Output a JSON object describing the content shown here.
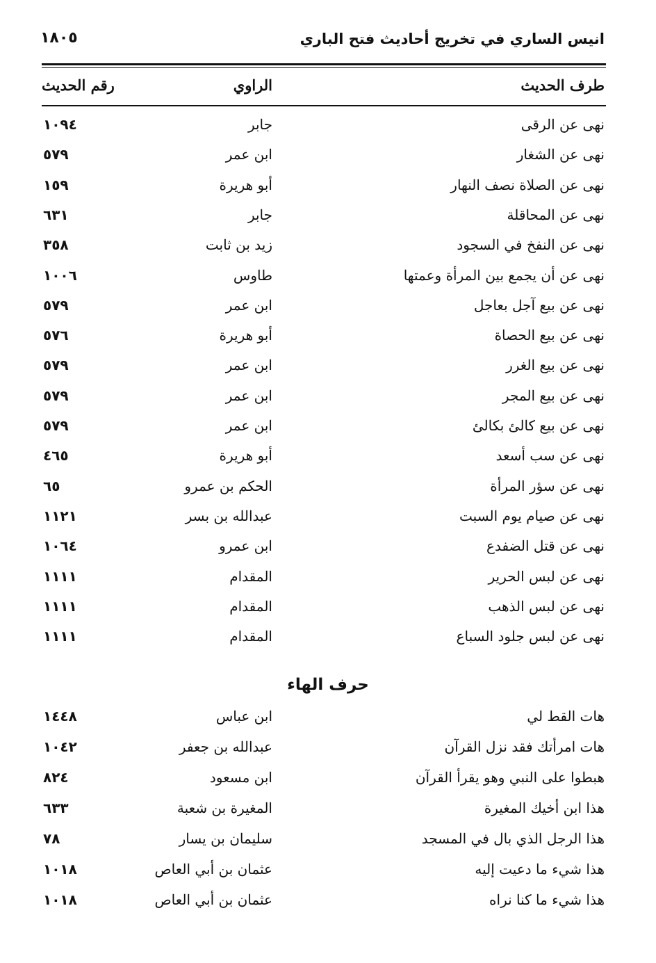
{
  "header": {
    "title": "انيس الساري في تخريج أحاديث فتح الباري",
    "page_number": "١٨٠٥"
  },
  "columns": {
    "hadith": "طرف الحديث",
    "narrator": "الراوي",
    "number": "رقم الحديث"
  },
  "rows_1": [
    {
      "hadith": "نهى عن الرقى",
      "narrator": "جابر",
      "number": "١٠٩٤"
    },
    {
      "hadith": "نهى عن الشغار",
      "narrator": "ابن عمر",
      "number": "٥٧٩"
    },
    {
      "hadith": "نهى عن الصلاة نصف النهار",
      "narrator": "أبو هريرة",
      "number": "١٥٩"
    },
    {
      "hadith": "نهى عن المحاقلة",
      "narrator": "جابر",
      "number": "٦٣١"
    },
    {
      "hadith": "نهى عن النفخ في السجود",
      "narrator": "زيد بن ثابت",
      "number": "٣٥٨"
    },
    {
      "hadith": "نهى عن أن يجمع بين المرأة وعمتها",
      "narrator": "طاوس",
      "number": "١٠٠٦"
    },
    {
      "hadith": "نهى عن بيع آجل بعاجل",
      "narrator": "ابن عمر",
      "number": "٥٧٩"
    },
    {
      "hadith": "نهى عن بيع الحصاة",
      "narrator": "أبو هريرة",
      "number": "٥٧٦"
    },
    {
      "hadith": "نهى عن بيع الغرر",
      "narrator": "ابن عمر",
      "number": "٥٧٩"
    },
    {
      "hadith": "نهى عن بيع المجر",
      "narrator": "ابن عمر",
      "number": "٥٧٩"
    },
    {
      "hadith": "نهى عن بيع كالئ بكالئ",
      "narrator": "ابن عمر",
      "number": "٥٧٩"
    },
    {
      "hadith": "نهى عن سب أسعد",
      "narrator": "أبو هريرة",
      "number": "٤٦٥"
    },
    {
      "hadith": "نهى عن سؤر المرأة",
      "narrator": "الحكم بن عمرو",
      "number": "٦٥"
    },
    {
      "hadith": "نهى عن صيام يوم السبت",
      "narrator": "عبدالله بن بسر",
      "number": "١١٢١"
    },
    {
      "hadith": "نهى عن قتل الضفدع",
      "narrator": "ابن عمرو",
      "number": "١٠٦٤"
    },
    {
      "hadith": "نهى عن لبس الحرير",
      "narrator": "المقدام",
      "number": "١١١١"
    },
    {
      "hadith": "نهى عن لبس الذهب",
      "narrator": "المقدام",
      "number": "١١١١"
    },
    {
      "hadith": "نهى عن لبس جلود السباع",
      "narrator": "المقدام",
      "number": "١١١١"
    }
  ],
  "section_title": "حرف الهاء",
  "rows_2": [
    {
      "hadith": "هات القط لي",
      "narrator": "ابن عباس",
      "number": "١٤٤٨"
    },
    {
      "hadith": "هات امرأتك فقد نزل القرآن",
      "narrator": "عبدالله بن جعفر",
      "number": "١٠٤٢"
    },
    {
      "hadith": "هبطوا على النبي وهو يقرأ القرآن",
      "narrator": "ابن مسعود",
      "number": "٨٢٤"
    },
    {
      "hadith": "هذا ابن أخيك المغيرة",
      "narrator": "المغيرة بن شعبة",
      "number": "٦٣٣"
    },
    {
      "hadith": "هذا الرجل الذي بال في المسجد",
      "narrator": "سليمان بن يسار",
      "number": "٧٨"
    },
    {
      "hadith": "هذا شيء ما دعيت إليه",
      "narrator": "عثمان بن أبي العاص",
      "number": "١٠١٨"
    },
    {
      "hadith": "هذا شيء ما كنا نراه",
      "narrator": "عثمان بن أبي العاص",
      "number": "١٠١٨"
    }
  ]
}
